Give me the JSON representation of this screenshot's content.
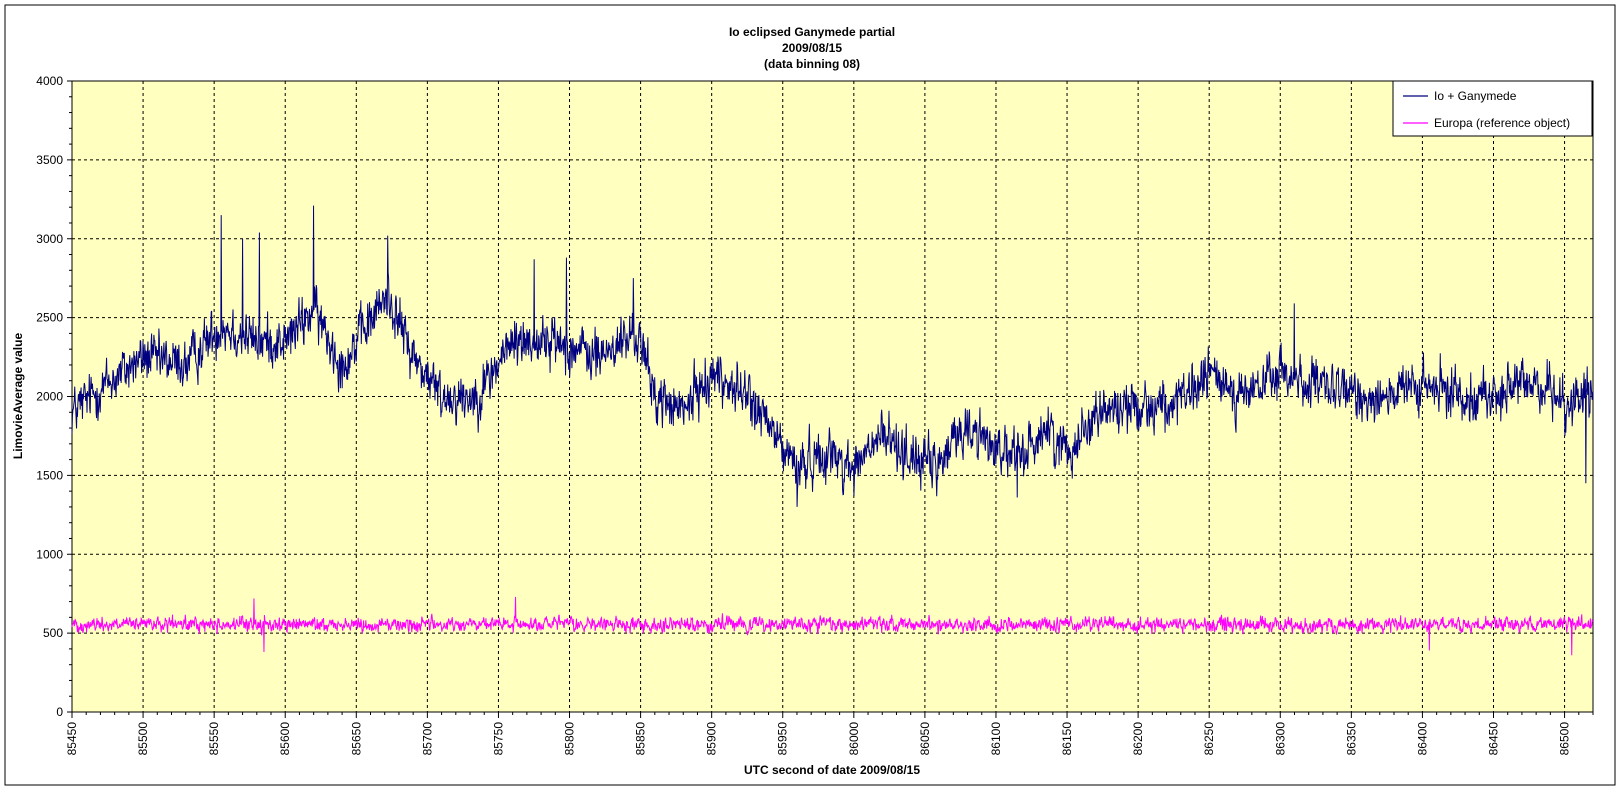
{
  "chart_data": {
    "type": "line",
    "title": [
      "Io eclipsed Ganymede partial",
      "2009/08/15",
      "(data binning 08)"
    ],
    "xlabel": "UTC second  of date 2009/08/15",
    "ylabel": "LimovieAverage value",
    "xlim": [
      85450,
      86520
    ],
    "ylim": [
      0,
      4000
    ],
    "x_ticks": [
      85450,
      85500,
      85550,
      85600,
      85650,
      85700,
      85750,
      85800,
      85850,
      85900,
      85950,
      86000,
      86050,
      86100,
      86150,
      86200,
      86250,
      86300,
      86350,
      86400,
      86450,
      86500
    ],
    "y_ticks": [
      0,
      500,
      1000,
      1500,
      2000,
      2500,
      3000,
      3500,
      4000
    ],
    "grid": true,
    "legend_position": "top-right",
    "plot_background": "#ffffc0",
    "series": [
      {
        "name": "Io + Ganymede",
        "color": "#000080",
        "sampling_step": 0.32,
        "noise_amplitude": 190,
        "spikes": [
          [
            85555,
            3150
          ],
          [
            85570,
            3000
          ],
          [
            85582,
            3040
          ],
          [
            85620,
            3210
          ],
          [
            85672,
            3020
          ],
          [
            85775,
            2870
          ],
          [
            85798,
            2880
          ],
          [
            85845,
            2750
          ],
          [
            85960,
            1300
          ],
          [
            86000,
            1370
          ],
          [
            86115,
            1360
          ],
          [
            86310,
            2590
          ],
          [
            86515,
            1450
          ]
        ],
        "trend": [
          [
            85450,
            1900
          ],
          [
            85470,
            2050
          ],
          [
            85500,
            2250
          ],
          [
            85530,
            2200
          ],
          [
            85555,
            2450
          ],
          [
            85580,
            2350
          ],
          [
            85600,
            2350
          ],
          [
            85620,
            2550
          ],
          [
            85640,
            2200
          ],
          [
            85672,
            2650
          ],
          [
            85690,
            2250
          ],
          [
            85710,
            2000
          ],
          [
            85735,
            2000
          ],
          [
            85760,
            2350
          ],
          [
            85790,
            2350
          ],
          [
            85820,
            2250
          ],
          [
            85848,
            2400
          ],
          [
            85860,
            2000
          ],
          [
            85880,
            1900
          ],
          [
            85900,
            2150
          ],
          [
            85925,
            2000
          ],
          [
            85945,
            1750
          ],
          [
            85960,
            1550
          ],
          [
            85980,
            1650
          ],
          [
            86000,
            1550
          ],
          [
            86020,
            1750
          ],
          [
            86045,
            1600
          ],
          [
            86060,
            1550
          ],
          [
            86075,
            1800
          ],
          [
            86090,
            1750
          ],
          [
            86115,
            1600
          ],
          [
            86135,
            1800
          ],
          [
            86150,
            1650
          ],
          [
            86170,
            1900
          ],
          [
            86200,
            1950
          ],
          [
            86230,
            1950
          ],
          [
            86250,
            2150
          ],
          [
            86275,
            2000
          ],
          [
            86300,
            2150
          ],
          [
            86330,
            2050
          ],
          [
            86360,
            2000
          ],
          [
            86400,
            2050
          ],
          [
            86450,
            2000
          ],
          [
            86480,
            2100
          ],
          [
            86505,
            1950
          ],
          [
            86520,
            2050
          ]
        ]
      },
      {
        "name": "Europa (reference object)",
        "color": "#ff00ff",
        "sampling_step": 0.32,
        "noise_amplitude": 55,
        "spikes": [
          [
            85578,
            720
          ],
          [
            85762,
            730
          ],
          [
            85585,
            380
          ],
          [
            86405,
            390
          ],
          [
            86505,
            360
          ]
        ],
        "trend": [
          [
            85450,
            555
          ],
          [
            86520,
            555
          ]
        ]
      }
    ]
  }
}
